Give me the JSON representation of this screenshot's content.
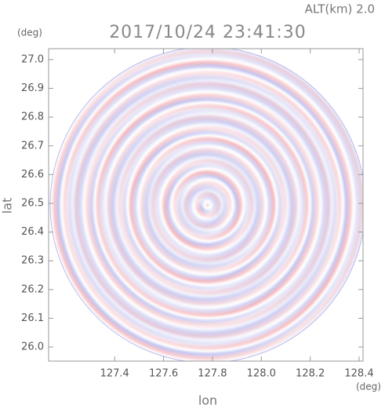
{
  "chart_data": {
    "type": "radar-ppi",
    "title": "2017/10/24 23:41:30",
    "subtitle": "ALT(km) 2.0",
    "x_label": "lon",
    "y_label": "lat",
    "x_unit": "(deg)",
    "y_unit": "(deg)",
    "xlim": [
      127.13,
      128.416
    ],
    "ylim": [
      25.951,
      27.038
    ],
    "xticks": [
      127.4,
      127.6,
      127.8,
      {
        "value": 128.0,
        "label": "128.0"
      },
      128.2,
      128.4
    ],
    "yticks": [
      {
        "value": 26.0,
        "label": "26.0"
      },
      26.1,
      26.2,
      26.3,
      26.4,
      26.5,
      26.6,
      26.7,
      26.8,
      26.9,
      {
        "value": 27.0,
        "label": "27.0"
      }
    ]
  }
}
